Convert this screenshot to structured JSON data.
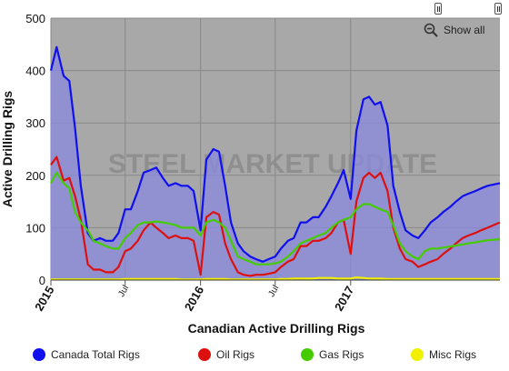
{
  "ui": {
    "show_all_label": "Show all",
    "watermark": "STEEL MARKET UPDATE"
  },
  "chart_data": {
    "type": "line",
    "title": "",
    "xlabel": "Canadian Active Drilling Rigs",
    "ylabel": "Active Drilling Rigs",
    "ylim": [
      0,
      500
    ],
    "yticks": [
      0,
      100,
      200,
      300,
      400,
      500
    ],
    "xlim": [
      "2015-01-01",
      "2017-12-31"
    ],
    "xticks": [
      {
        "date": "2015-01-01",
        "label": "2015",
        "kind": "year"
      },
      {
        "date": "2015-07-01",
        "label": "Jul",
        "kind": "month"
      },
      {
        "date": "2016-01-01",
        "label": "2016",
        "kind": "year"
      },
      {
        "date": "2016-07-01",
        "label": "Jul",
        "kind": "month"
      },
      {
        "date": "2017-01-01",
        "label": "2017",
        "kind": "year"
      }
    ],
    "grid": true,
    "legend_position": "bottom",
    "x": [
      "2015-01-01",
      "2015-01-15",
      "2015-02-01",
      "2015-02-15",
      "2015-03-01",
      "2015-03-15",
      "2015-04-01",
      "2015-04-15",
      "2015-05-01",
      "2015-05-15",
      "2015-06-01",
      "2015-06-15",
      "2015-07-01",
      "2015-07-15",
      "2015-08-01",
      "2015-08-15",
      "2015-09-01",
      "2015-09-15",
      "2015-10-01",
      "2015-10-15",
      "2015-11-01",
      "2015-11-15",
      "2015-12-01",
      "2015-12-15",
      "2016-01-01",
      "2016-01-15",
      "2016-02-01",
      "2016-02-15",
      "2016-03-01",
      "2016-03-15",
      "2016-04-01",
      "2016-04-15",
      "2016-05-01",
      "2016-05-15",
      "2016-06-01",
      "2016-06-15",
      "2016-07-01",
      "2016-07-15",
      "2016-08-01",
      "2016-08-15",
      "2016-09-01",
      "2016-09-15",
      "2016-10-01",
      "2016-10-15",
      "2016-11-01",
      "2016-11-15",
      "2016-12-01",
      "2016-12-15",
      "2017-01-01",
      "2017-01-15",
      "2017-02-01",
      "2017-02-15",
      "2017-03-01",
      "2017-03-15",
      "2017-04-01",
      "2017-04-15",
      "2017-05-01",
      "2017-05-15",
      "2017-06-01",
      "2017-06-15",
      "2017-07-01",
      "2017-07-15",
      "2017-08-01",
      "2017-08-15",
      "2017-09-01",
      "2017-09-15",
      "2017-10-01",
      "2017-10-15",
      "2017-11-01",
      "2017-11-15",
      "2017-12-01",
      "2017-12-31"
    ],
    "series": [
      {
        "name": "Canada Total Rigs",
        "color": "#1010ee",
        "fill": true,
        "values": [
          400,
          445,
          390,
          380,
          290,
          180,
          90,
          75,
          80,
          75,
          75,
          90,
          135,
          135,
          170,
          205,
          210,
          215,
          195,
          180,
          185,
          180,
          180,
          170,
          95,
          230,
          250,
          245,
          180,
          110,
          70,
          55,
          45,
          40,
          35,
          40,
          45,
          60,
          75,
          80,
          110,
          110,
          120,
          120,
          140,
          160,
          185,
          210,
          155,
          285,
          345,
          350,
          335,
          340,
          295,
          180,
          130,
          95,
          85,
          80,
          95,
          110,
          120,
          130,
          140,
          150,
          160,
          165,
          170,
          175,
          180,
          185
        ]
      },
      {
        "name": "Oil Rigs",
        "color": "#dd1010",
        "fill": false,
        "values": [
          220,
          235,
          190,
          195,
          160,
          115,
          30,
          20,
          20,
          15,
          15,
          25,
          55,
          60,
          75,
          95,
          110,
          100,
          90,
          80,
          85,
          80,
          80,
          75,
          10,
          120,
          130,
          125,
          70,
          40,
          15,
          10,
          8,
          10,
          10,
          12,
          15,
          25,
          35,
          40,
          65,
          65,
          75,
          75,
          80,
          90,
          110,
          115,
          50,
          150,
          195,
          205,
          195,
          205,
          170,
          100,
          60,
          40,
          35,
          25,
          30,
          35,
          40,
          50,
          60,
          70,
          80,
          85,
          90,
          95,
          100,
          110
        ]
      },
      {
        "name": "Gas Rigs",
        "color": "#44cc00",
        "fill": false,
        "values": [
          185,
          205,
          185,
          175,
          130,
          110,
          95,
          75,
          70,
          65,
          60,
          60,
          80,
          90,
          105,
          110,
          110,
          112,
          110,
          108,
          105,
          100,
          100,
          100,
          85,
          110,
          115,
          110,
          100,
          75,
          45,
          40,
          35,
          30,
          30,
          30,
          32,
          35,
          45,
          55,
          70,
          75,
          80,
          85,
          90,
          100,
          110,
          115,
          120,
          135,
          145,
          145,
          140,
          135,
          130,
          105,
          70,
          55,
          45,
          40,
          55,
          60,
          60,
          62,
          64,
          66,
          68,
          70,
          72,
          74,
          76,
          78
        ]
      },
      {
        "name": "Misc Rigs",
        "color": "#f0f000",
        "fill": false,
        "values": [
          1,
          1,
          1,
          1,
          1,
          1,
          1,
          1,
          1,
          1,
          1,
          1,
          2,
          2,
          2,
          2,
          2,
          2,
          2,
          2,
          2,
          1,
          1,
          1,
          1,
          2,
          2,
          2,
          2,
          1,
          1,
          1,
          1,
          1,
          1,
          1,
          1,
          2,
          2,
          3,
          3,
          3,
          3,
          4,
          4,
          4,
          3,
          3,
          3,
          5,
          4,
          3,
          3,
          3,
          2,
          2,
          2,
          2,
          2,
          2,
          2,
          2,
          2,
          2,
          2,
          2,
          2,
          2,
          2,
          2,
          2,
          2
        ]
      }
    ]
  }
}
